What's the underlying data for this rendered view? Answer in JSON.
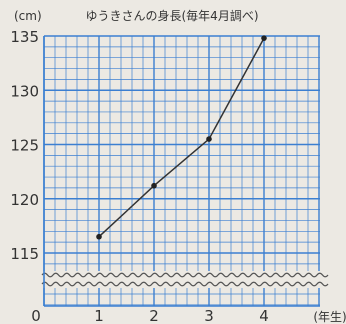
{
  "chart_data": {
    "type": "line",
    "title": "ゆうきさんの身長(毎年4月調べ)",
    "unit_label": "(cm)",
    "xlabel": "(年生)",
    "ylabel": "",
    "x": [
      1,
      2,
      3,
      4
    ],
    "values": [
      116.5,
      121.2,
      125.5,
      134.8
    ],
    "x_ticks": [
      "0",
      "1",
      "2",
      "3",
      "4"
    ],
    "y_ticks": [
      115,
      120,
      125,
      130,
      135
    ],
    "ylim": [
      115,
      135
    ],
    "xlim": [
      0,
      4
    ],
    "axis_break": true,
    "grid": true,
    "colors": {
      "grid": "#3b7fd1",
      "line": "#333333",
      "background": "#ece9e3"
    }
  }
}
